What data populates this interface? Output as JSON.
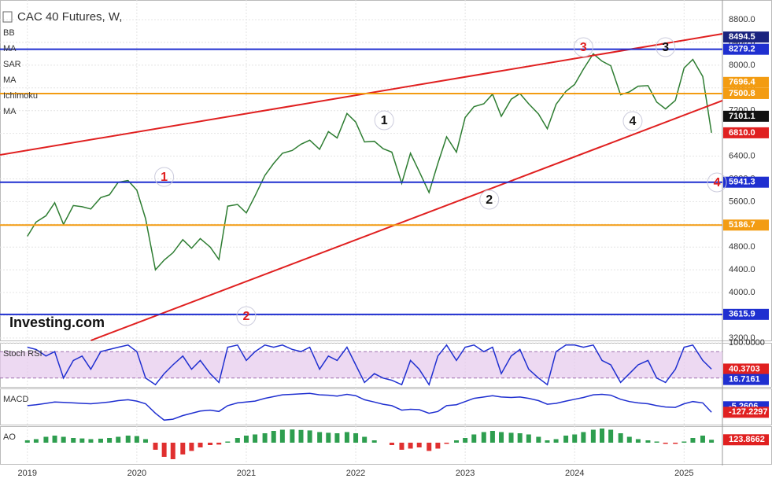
{
  "chart_data": [
    {
      "type": "line",
      "title": "CAC 40 Futures, W,",
      "indicators": [
        "BB",
        "MA",
        "SAR",
        "MA",
        "Ichimoku",
        "MA"
      ],
      "logo": "Investing.com",
      "x": [
        2019.0,
        2019.08,
        2019.17,
        2019.25,
        2019.33,
        2019.42,
        2019.5,
        2019.58,
        2019.67,
        2019.75,
        2019.83,
        2019.92,
        2020.0,
        2020.08,
        2020.17,
        2020.25,
        2020.33,
        2020.42,
        2020.5,
        2020.58,
        2020.67,
        2020.75,
        2020.83,
        2020.92,
        2021.0,
        2021.08,
        2021.17,
        2021.25,
        2021.33,
        2021.42,
        2021.5,
        2021.58,
        2021.67,
        2021.75,
        2021.83,
        2021.92,
        2022.0,
        2022.08,
        2022.17,
        2022.25,
        2022.33,
        2022.42,
        2022.5,
        2022.58,
        2022.67,
        2022.75,
        2022.83,
        2022.92,
        2023.0,
        2023.08,
        2023.17,
        2023.25,
        2023.33,
        2023.42,
        2023.5,
        2023.58,
        2023.67,
        2023.75,
        2023.83,
        2023.92,
        2024.0,
        2024.08,
        2024.17,
        2024.25,
        2024.33,
        2024.42,
        2024.5,
        2024.58,
        2024.67,
        2024.75,
        2024.83,
        2024.92,
        2025.0,
        2025.08,
        2025.17,
        2025.25
      ],
      "values": [
        4990,
        5240,
        5350,
        5580,
        5200,
        5530,
        5510,
        5470,
        5670,
        5720,
        5940,
        5970,
        5800,
        5300,
        4400,
        4570,
        4700,
        4930,
        4780,
        4950,
        4800,
        4580,
        5520,
        5550,
        5400,
        5700,
        6060,
        6270,
        6450,
        6500,
        6610,
        6680,
        6520,
        6830,
        6720,
        7150,
        7000,
        6650,
        6660,
        6530,
        6470,
        5920,
        6450,
        6130,
        5760,
        6270,
        6740,
        6470,
        7080,
        7270,
        7320,
        7490,
        7100,
        7400,
        7500,
        7320,
        7140,
        6880,
        7310,
        7540,
        7660,
        7930,
        8200,
        8070,
        7990,
        7480,
        7530,
        7630,
        7640,
        7350,
        7230,
        7380,
        7950,
        8100,
        7800,
        6810
      ],
      "color": "#2e7d32",
      "xlim": [
        2018.75,
        2025.35
      ],
      "xticks": [
        2019,
        2020,
        2021,
        2022,
        2023,
        2024,
        2025
      ],
      "ylim": [
        3157,
        9146
      ],
      "yticks": [
        {
          "value": 8800,
          "label": "8800.0"
        },
        {
          "value": 8400,
          "label": "8400.0"
        },
        {
          "value": 8000,
          "label": "8000.0"
        },
        {
          "value": 7600,
          "label": "7600.0"
        },
        {
          "value": 7200,
          "label": "7200.0"
        },
        {
          "value": 6800,
          "label": "6800.0"
        },
        {
          "value": 6400,
          "label": "6400.0"
        },
        {
          "value": 6000,
          "label": "6000.0"
        },
        {
          "value": 5600,
          "label": "5600.0"
        },
        {
          "value": 5200,
          "label": "5200.0"
        },
        {
          "value": 4800,
          "label": "4800.0"
        },
        {
          "value": 4400,
          "label": "4400.0"
        },
        {
          "value": 4000,
          "label": "4000.0"
        },
        {
          "value": 3600,
          "label": "3600.0"
        },
        {
          "value": 3200,
          "label": "3200.0"
        }
      ],
      "grid": true,
      "markers": [
        {
          "value": 8494.5,
          "color": "#1a237e",
          "line": false
        },
        {
          "value": 8279.2,
          "color": "#1f2fd0",
          "line": true
        },
        {
          "value": 7696.4,
          "color": "#f39c12",
          "line": false
        },
        {
          "value": 7500.8,
          "color": "#f39c12",
          "line": true
        },
        {
          "value": 7101.1,
          "color": "#111111",
          "line": false
        },
        {
          "value": 6810,
          "label": "6810.0",
          "color": "#e02020",
          "line": false
        },
        {
          "value": 5941.3,
          "color": "#1f2fd0",
          "line": true
        },
        {
          "value": 5186.7,
          "color": "#f39c12",
          "line": true
        },
        {
          "value": 3615.9,
          "color": "#1f2fd0",
          "line": true
        }
      ],
      "trendlines": [
        {
          "points": [
            [
              2018.75,
              6421
            ],
            [
              2025.35,
              8551
            ]
          ],
          "color": "#e02020"
        },
        {
          "points": [
            [
              2019.58,
              3157
            ],
            [
              2025.35,
              7376
            ]
          ],
          "color": "#e02020"
        }
      ],
      "annotations": [
        {
          "text": "1",
          "x": 2020.25,
          "y": 6034,
          "color": "#e02020"
        },
        {
          "text": "2",
          "x": 2021.0,
          "y": 3586,
          "color": "#e02020"
        },
        {
          "text": "3",
          "x": 2024.08,
          "y": 8316,
          "color": "#e02020"
        },
        {
          "text": "4",
          "x": 2025.3,
          "y": 5937,
          "color": "#e02020"
        },
        {
          "text": "1",
          "x": 2022.26,
          "y": 7030,
          "color": "#111111"
        },
        {
          "text": "2",
          "x": 2023.22,
          "y": 5633,
          "color": "#111111"
        },
        {
          "text": "3",
          "x": 2024.83,
          "y": 8316,
          "color": "#111111"
        },
        {
          "text": "4",
          "x": 2024.53,
          "y": 7016,
          "color": "#111111"
        }
      ]
    },
    {
      "type": "line",
      "title": "Stoch RSI",
      "values": [
        90,
        85,
        70,
        80,
        20,
        60,
        70,
        40,
        80,
        85,
        90,
        95,
        80,
        20,
        5,
        30,
        50,
        70,
        40,
        60,
        30,
        10,
        90,
        95,
        60,
        80,
        95,
        90,
        95,
        85,
        80,
        90,
        40,
        70,
        60,
        90,
        50,
        10,
        30,
        20,
        15,
        5,
        60,
        40,
        5,
        70,
        95,
        60,
        90,
        95,
        80,
        90,
        30,
        70,
        85,
        40,
        20,
        5,
        80,
        95,
        95,
        90,
        95,
        60,
        50,
        10,
        30,
        50,
        60,
        20,
        10,
        40,
        90,
        95,
        60,
        40.3703
      ],
      "color": "#1f2fd0",
      "ylim": [
        0,
        100
      ],
      "yticks": [
        {
          "value": 100,
          "label": "100.0000"
        }
      ],
      "band": [
        20,
        80
      ],
      "markers": [
        {
          "value": 40.3703,
          "color": "#e02020",
          "line": false
        },
        {
          "value": 16.7161,
          "color": "#1f2fd0",
          "line": false
        }
      ]
    },
    {
      "type": "line",
      "title": "MACD",
      "values": [
        20,
        40,
        70,
        100,
        90,
        80,
        70,
        60,
        80,
        100,
        130,
        150,
        120,
        60,
        -150,
        -300,
        -280,
        -200,
        -150,
        -100,
        -80,
        -110,
        20,
        80,
        100,
        120,
        180,
        220,
        260,
        270,
        280,
        290,
        260,
        250,
        230,
        270,
        240,
        150,
        100,
        50,
        20,
        -80,
        -60,
        -70,
        -150,
        -110,
        20,
        40,
        110,
        180,
        210,
        240,
        210,
        200,
        210,
        180,
        130,
        50,
        70,
        120,
        160,
        200,
        260,
        270,
        250,
        160,
        110,
        80,
        60,
        20,
        -10,
        -20,
        60,
        110,
        80,
        -127.2297
      ],
      "color": "#1f2fd0",
      "ylim": [
        -400,
        400
      ],
      "markers": [
        {
          "value": -5.2606,
          "color": "#1f2fd0",
          "line": false
        },
        {
          "value": -127.2297,
          "color": "#e02020",
          "line": false
        }
      ]
    },
    {
      "type": "bar",
      "title": "AO",
      "values": [
        100,
        150,
        250,
        300,
        250,
        200,
        180,
        150,
        170,
        200,
        250,
        300,
        280,
        150,
        -300,
        -600,
        -700,
        -500,
        -350,
        -200,
        -100,
        -80,
        50,
        200,
        300,
        350,
        400,
        500,
        550,
        560,
        540,
        520,
        450,
        420,
        400,
        450,
        400,
        250,
        100,
        0,
        -100,
        -300,
        -250,
        -200,
        -350,
        -250,
        -50,
        100,
        200,
        350,
        450,
        500,
        450,
        420,
        400,
        350,
        250,
        100,
        150,
        300,
        350,
        450,
        550,
        600,
        550,
        400,
        250,
        150,
        100,
        50,
        -50,
        -50,
        50,
        200,
        300,
        123.8662
      ],
      "color": "#2e9e4f",
      "down_color": "#e03030",
      "ylim": [
        -900,
        700
      ],
      "markers": [
        {
          "value": 123.8662,
          "color": "#e02020",
          "line": false
        }
      ]
    }
  ]
}
